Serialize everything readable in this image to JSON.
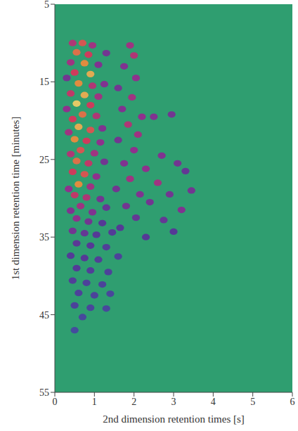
{
  "chart_data": {
    "type": "heatmap",
    "x_label": "2nd dimension retention times [s]",
    "y_label": "1st dimension retention time [minutes]",
    "xlim": [
      0,
      6
    ],
    "xticks": [
      0,
      1,
      2,
      3,
      4,
      5,
      6
    ],
    "ylim": [
      5,
      55
    ],
    "yticks": [
      5,
      15,
      25,
      35,
      45,
      55
    ],
    "zlim": [
      0,
      100
    ],
    "cells": [
      [
        0.45,
        10,
        60
      ],
      [
        0.7,
        10,
        75
      ],
      [
        0.95,
        10.3,
        55
      ],
      [
        0.55,
        11.2,
        80
      ],
      [
        0.85,
        11.5,
        70
      ],
      [
        1.3,
        11.3,
        40
      ],
      [
        0.4,
        12.5,
        55
      ],
      [
        0.75,
        12.6,
        85
      ],
      [
        1.1,
        12.8,
        45
      ],
      [
        0.5,
        13.8,
        70
      ],
      [
        0.9,
        14,
        90
      ],
      [
        0.3,
        14.5,
        40
      ],
      [
        0.6,
        15.2,
        85
      ],
      [
        0.95,
        15.5,
        60
      ],
      [
        1.25,
        15.3,
        45
      ],
      [
        0.4,
        16.5,
        65
      ],
      [
        0.75,
        16.7,
        90
      ],
      [
        1.1,
        16.9,
        55
      ],
      [
        0.55,
        17.8,
        95
      ],
      [
        0.9,
        18,
        70
      ],
      [
        0.3,
        18.5,
        50
      ],
      [
        0.7,
        19.2,
        80
      ],
      [
        1.05,
        19.4,
        60
      ],
      [
        0.45,
        19.8,
        70
      ],
      [
        0.6,
        20.8,
        90
      ],
      [
        0.9,
        21.2,
        75
      ],
      [
        0.35,
        21.5,
        55
      ],
      [
        1.2,
        21,
        45
      ],
      [
        0.5,
        22.4,
        85
      ],
      [
        0.8,
        22.6,
        70
      ],
      [
        1.15,
        22.8,
        50
      ],
      [
        0.65,
        23.8,
        75
      ],
      [
        0.4,
        24.3,
        60
      ],
      [
        1.0,
        24.2,
        55
      ],
      [
        0.55,
        25.2,
        80
      ],
      [
        0.85,
        25.5,
        65
      ],
      [
        1.25,
        25.3,
        40
      ],
      [
        0.45,
        26.6,
        70
      ],
      [
        0.75,
        26.9,
        75
      ],
      [
        1.05,
        27.2,
        50
      ],
      [
        0.6,
        28.2,
        85
      ],
      [
        0.9,
        28.5,
        55
      ],
      [
        0.35,
        28.8,
        50
      ],
      [
        0.5,
        29.6,
        65
      ],
      [
        0.8,
        29.9,
        60
      ],
      [
        1.15,
        30.1,
        40
      ],
      [
        0.65,
        31,
        55
      ],
      [
        0.4,
        31.6,
        45
      ],
      [
        0.95,
        31.8,
        45
      ],
      [
        1.3,
        31.2,
        35
      ],
      [
        0.55,
        32.6,
        50
      ],
      [
        0.85,
        33,
        40
      ],
      [
        1.2,
        33.2,
        30
      ],
      [
        0.45,
        34.2,
        40
      ],
      [
        0.75,
        34.5,
        35
      ],
      [
        1.05,
        34.7,
        30
      ],
      [
        1.45,
        34.4,
        28
      ],
      [
        0.55,
        35.8,
        32
      ],
      [
        0.9,
        36.1,
        30
      ],
      [
        1.3,
        36.3,
        25
      ],
      [
        0.4,
        37.4,
        28
      ],
      [
        0.75,
        37.7,
        30
      ],
      [
        1.1,
        37.9,
        25
      ],
      [
        1.6,
        37.5,
        22
      ],
      [
        0.55,
        39,
        28
      ],
      [
        0.9,
        39.3,
        25
      ],
      [
        1.35,
        39.5,
        22
      ],
      [
        0.45,
        40.6,
        25
      ],
      [
        0.8,
        40.9,
        22
      ],
      [
        1.2,
        41.1,
        20
      ],
      [
        0.6,
        42.2,
        22
      ],
      [
        1.0,
        42.5,
        20
      ],
      [
        1.4,
        42.3,
        18
      ],
      [
        0.5,
        43.8,
        20
      ],
      [
        0.9,
        44.1,
        18
      ],
      [
        1.3,
        44.2,
        16
      ],
      [
        0.7,
        45.3,
        15
      ],
      [
        0.5,
        47,
        12
      ],
      [
        1.9,
        10.3,
        55
      ],
      [
        2.0,
        11.6,
        60
      ],
      [
        1.75,
        13,
        45
      ],
      [
        2.05,
        14.5,
        50
      ],
      [
        1.6,
        15.8,
        40
      ],
      [
        1.95,
        17,
        55
      ],
      [
        1.7,
        18.5,
        45
      ],
      [
        2.2,
        19.5,
        50
      ],
      [
        1.85,
        20.5,
        60
      ],
      [
        2.1,
        21.8,
        55
      ],
      [
        1.6,
        22.5,
        40
      ],
      [
        2.0,
        23.8,
        50
      ],
      [
        1.75,
        25.5,
        45
      ],
      [
        2.3,
        26.2,
        50
      ],
      [
        1.9,
        27.5,
        55
      ],
      [
        1.55,
        28.8,
        40
      ],
      [
        2.15,
        29.5,
        45
      ],
      [
        1.8,
        31,
        40
      ],
      [
        2.05,
        32.5,
        35
      ],
      [
        1.65,
        33.8,
        30
      ],
      [
        2.3,
        35,
        30
      ],
      [
        2.5,
        19.5,
        45
      ],
      [
        2.7,
        24.5,
        45
      ],
      [
        2.95,
        19.2,
        40
      ],
      [
        3.1,
        25.5,
        40
      ],
      [
        2.6,
        28,
        55
      ],
      [
        2.9,
        29.5,
        40
      ],
      [
        3.2,
        31.5,
        45
      ],
      [
        3.45,
        29,
        40
      ],
      [
        2.75,
        32.8,
        35
      ],
      [
        3.0,
        34.3,
        30
      ],
      [
        2.4,
        30.5,
        40
      ],
      [
        3.3,
        26.5,
        35
      ]
    ]
  }
}
